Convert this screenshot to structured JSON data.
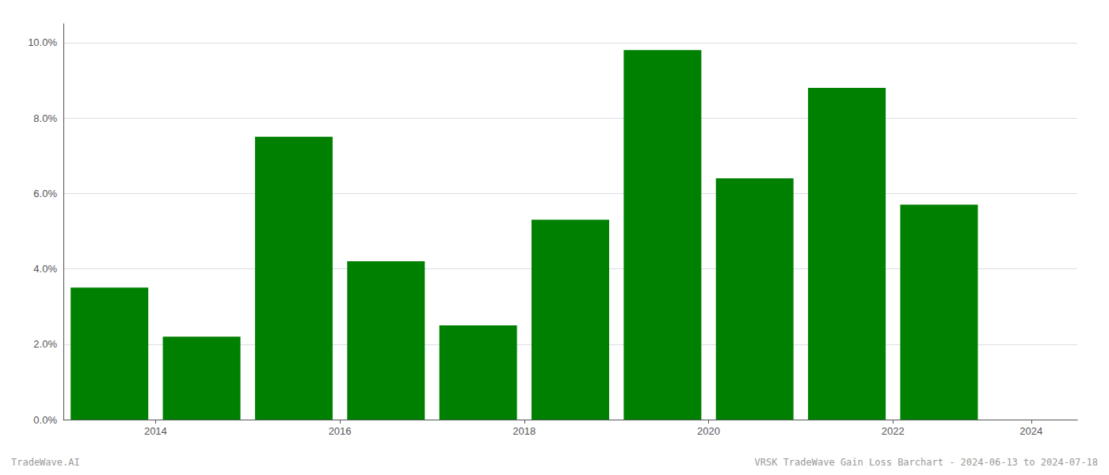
{
  "chart_data": {
    "type": "bar",
    "x": [
      2014,
      2015,
      2016,
      2017,
      2018,
      2019,
      2020,
      2021,
      2022,
      2023
    ],
    "values": [
      0.035,
      0.022,
      0.075,
      0.042,
      0.025,
      0.053,
      0.098,
      0.064,
      0.088,
      0.057
    ],
    "color": "#008000",
    "xlim": [
      2013.5,
      2024.5
    ],
    "xticks": [
      {
        "value": 2014.5,
        "label": "2014"
      },
      {
        "value": 2016.5,
        "label": "2016"
      },
      {
        "value": 2018.5,
        "label": "2018"
      },
      {
        "value": 2020.5,
        "label": "2020"
      },
      {
        "value": 2022.5,
        "label": "2022"
      },
      2024
    ],
    "ylim": [
      0,
      0.105
    ],
    "yticks": [
      {
        "value": 0.0,
        "label": "0.0%"
      },
      {
        "value": 0.02,
        "label": "2.0%"
      },
      {
        "value": 0.04,
        "label": "4.0%"
      },
      {
        "value": 0.06,
        "label": "6.0%"
      },
      {
        "value": 0.08,
        "label": "8.0%"
      },
      {
        "value": 0.1,
        "label": "10.0%"
      }
    ],
    "grid": true,
    "annotations": [
      "TradeWave.AI",
      "VRSK TradeWave Gain Loss Barchart - 2024-06-13 to 2024-07-18"
    ]
  }
}
